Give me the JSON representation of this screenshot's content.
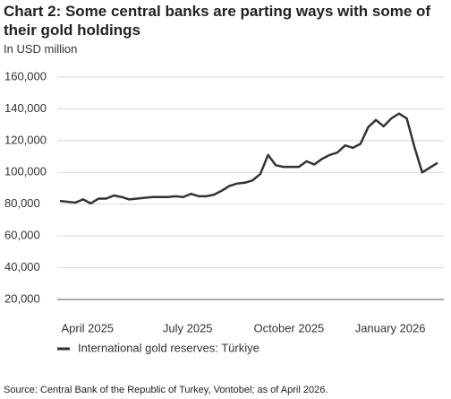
{
  "chart_data": {
    "type": "line",
    "title": "Chart 2: Some central banks are parting ways with some of their gold holdings",
    "subtitle": "In USD million",
    "source": "Source: Central Bank of the Republic of Turkey, Vontobel; as of April 2026.",
    "x": [
      "2025-03-07",
      "2025-03-14",
      "2025-03-21",
      "2025-03-28",
      "2025-04-04",
      "2025-04-11",
      "2025-04-18",
      "2025-04-25",
      "2025-05-02",
      "2025-05-09",
      "2025-05-16",
      "2025-05-23",
      "2025-05-30",
      "2025-06-06",
      "2025-06-13",
      "2025-06-20",
      "2025-06-27",
      "2025-07-04",
      "2025-07-11",
      "2025-07-18",
      "2025-07-25",
      "2025-08-01",
      "2025-08-08",
      "2025-08-15",
      "2025-08-22",
      "2025-08-29",
      "2025-09-05",
      "2025-09-12",
      "2025-09-19",
      "2025-09-26",
      "2025-10-03",
      "2025-10-10",
      "2025-10-17",
      "2025-10-24",
      "2025-10-31",
      "2025-11-07",
      "2025-11-14",
      "2025-11-21",
      "2025-11-28",
      "2025-12-05",
      "2025-12-12",
      "2025-12-19",
      "2025-12-26",
      "2026-01-02",
      "2026-01-09",
      "2026-01-16",
      "2026-01-23",
      "2026-01-30",
      "2026-02-06",
      "2026-02-13"
    ],
    "series": [
      {
        "name": "International gold reserves: Türkiye",
        "color": "#333333",
        "values": [
          82000,
          81500,
          81000,
          83000,
          80500,
          83500,
          83500,
          85500,
          84500,
          83000,
          83500,
          84000,
          84500,
          84500,
          84500,
          85000,
          84500,
          86500,
          85000,
          85000,
          86000,
          88500,
          91500,
          93000,
          93500,
          95000,
          99000,
          111000,
          104500,
          103500,
          103500,
          103500,
          107000,
          105000,
          108500,
          111000,
          112500,
          117000,
          115500,
          118000,
          128500,
          133000,
          129000,
          134000,
          137000,
          134000,
          116000,
          100000,
          103000,
          106000
        ]
      }
    ],
    "xlim": [
      "2025-03-07",
      "2026-02-13"
    ],
    "xticks": [
      {
        "value": "2025-04-01",
        "label": "April 2025"
      },
      {
        "value": "2025-07-01",
        "label": "July 2025"
      },
      {
        "value": "2025-10-01",
        "label": "October 2025"
      },
      {
        "value": "2026-01-01",
        "label": "January 2026"
      }
    ],
    "ylim": [
      20000,
      160000
    ],
    "yticks": [
      {
        "value": 20000,
        "label": "20,000"
      },
      {
        "value": 40000,
        "label": "40,000"
      },
      {
        "value": 60000,
        "label": "60,000"
      },
      {
        "value": 80000,
        "label": "80,000"
      },
      {
        "value": 100000,
        "label": "100,000"
      },
      {
        "value": 120000,
        "label": "120,000"
      },
      {
        "value": 140000,
        "label": "140,000"
      },
      {
        "value": 160000,
        "label": "160,000"
      }
    ],
    "grid": true
  }
}
